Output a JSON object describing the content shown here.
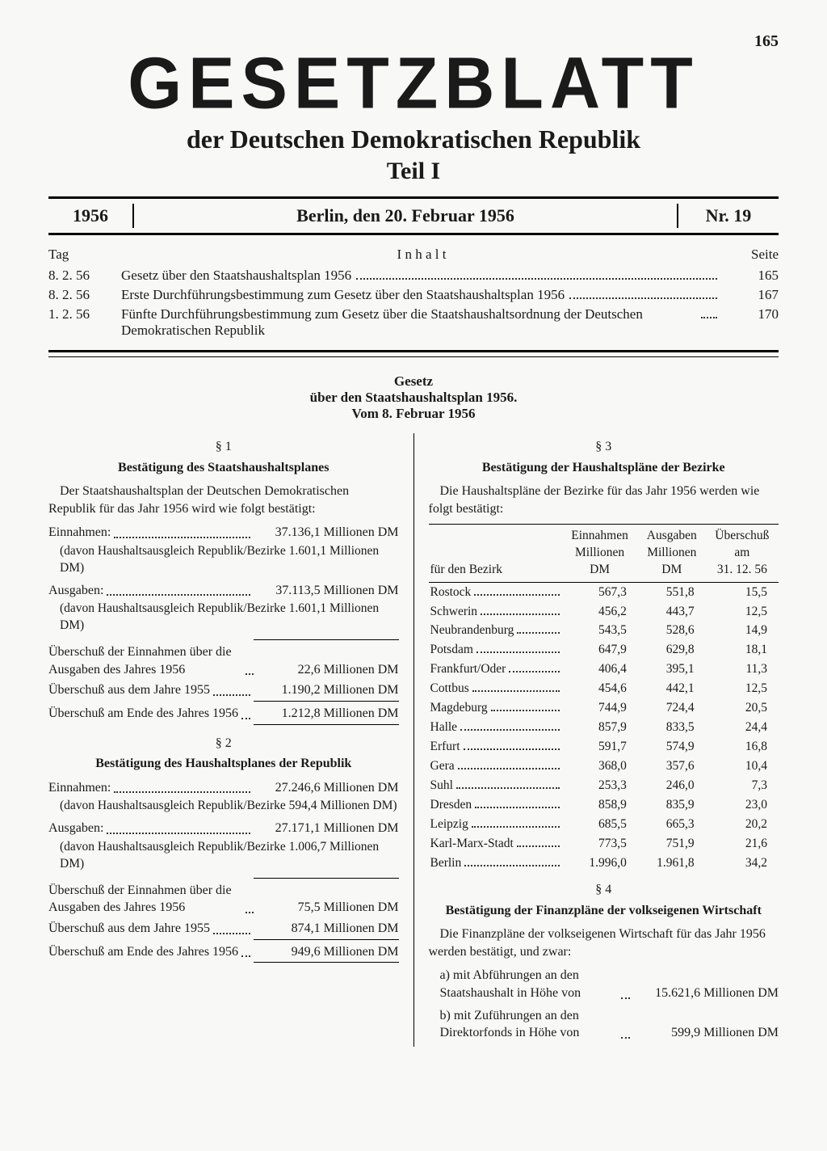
{
  "page_number": "165",
  "masthead": {
    "title": "GESETZBLATT",
    "subtitle": "der Deutschen Demokratischen Republik",
    "part": "Teil I"
  },
  "header": {
    "year": "1956",
    "place_date": "Berlin, den 20. Februar 1956",
    "number": "Nr. 19"
  },
  "toc": {
    "col_tag": "Tag",
    "col_inhalt": "I n h a l t",
    "col_seite": "Seite",
    "rows": [
      {
        "date": "8. 2. 56",
        "title": "Gesetz über den Staatshaushaltsplan 1956",
        "page": "165"
      },
      {
        "date": "8. 2. 56",
        "title": "Erste Durchführungsbestimmung zum Gesetz über den Staatshaushaltsplan 1956",
        "page": "167"
      },
      {
        "date": "1. 2. 56",
        "title": "Fünfte Durchführungsbestimmung zum Gesetz über die Staatshaushaltsordnung der Deutschen Demokratischen Republik",
        "page": "170"
      }
    ]
  },
  "law": {
    "line1": "Gesetz",
    "line2": "über den Staatshaushaltsplan 1956.",
    "line3": "Vom 8. Februar 1956"
  },
  "sec1": {
    "num": "§ 1",
    "title": "Bestätigung des Staatshaushaltsplanes",
    "intro": "Der Staatshaushaltsplan der Deutschen Demokratischen Republik für das Jahr 1956 wird wie folgt bestätigt:",
    "r1_label": "Einnahmen:",
    "r1_val": "37.136,1 Millionen DM",
    "r1_sub": "(davon Haushaltsausgleich Republik/Bezirke 1.601,1 Millionen DM)",
    "r2_label": "Ausgaben:",
    "r2_val": "37.113,5 Millionen DM",
    "r2_sub": "(davon Haushaltsausgleich Republik/Bezirke 1.601,1 Millionen DM)",
    "r3_label": "Überschuß der Einnahmen über die Ausgaben des Jahres 1956",
    "r3_val": "22,6 Millionen DM",
    "r4_label": "Überschuß aus dem Jahre 1955",
    "r4_val": "1.190,2 Millionen DM",
    "r5_label": "Überschuß am Ende des Jahres 1956",
    "r5_val": "1.212,8 Millionen DM"
  },
  "sec2": {
    "num": "§ 2",
    "title": "Bestätigung des Haushaltsplanes der Republik",
    "r1_label": "Einnahmen:",
    "r1_val": "27.246,6 Millionen DM",
    "r1_sub": "(davon Haushaltsausgleich Republik/Bezirke 594,4 Millionen DM)",
    "r2_label": "Ausgaben:",
    "r2_val": "27.171,1 Millionen DM",
    "r2_sub": "(davon Haushaltsausgleich Republik/Bezirke 1.006,7 Millionen DM)",
    "r3_label": "Überschuß der Einnahmen über die Ausgaben des Jahres 1956",
    "r3_val": "75,5 Millionen DM",
    "r4_label": "Überschuß aus dem Jahre 1955",
    "r4_val": "874,1 Millionen DM",
    "r5_label": "Überschuß am Ende des Jahres 1956",
    "r5_val": "949,6 Millionen DM"
  },
  "sec3": {
    "num": "§ 3",
    "title": "Bestätigung der Haushaltspläne der Bezirke",
    "intro": "Die Haushaltspläne der Bezirke für das Jahr 1956 werden wie folgt bestätigt:",
    "col0": "für den Bezirk",
    "col1a": "Einnahmen",
    "col1b": "Millionen",
    "col1c": "DM",
    "col2a": "Ausgaben",
    "col2b": "Millionen",
    "col2c": "DM",
    "col3a": "Überschuß",
    "col3b": "am",
    "col3c": "31. 12. 56",
    "rows": [
      {
        "name": "Rostock",
        "einn": "567,3",
        "ausg": "551,8",
        "uber": "15,5"
      },
      {
        "name": "Schwerin",
        "einn": "456,2",
        "ausg": "443,7",
        "uber": "12,5"
      },
      {
        "name": "Neubrandenburg",
        "einn": "543,5",
        "ausg": "528,6",
        "uber": "14,9"
      },
      {
        "name": "Potsdam",
        "einn": "647,9",
        "ausg": "629,8",
        "uber": "18,1"
      },
      {
        "name": "Frankfurt/Oder",
        "einn": "406,4",
        "ausg": "395,1",
        "uber": "11,3"
      },
      {
        "name": "Cottbus",
        "einn": "454,6",
        "ausg": "442,1",
        "uber": "12,5"
      },
      {
        "name": "Magdeburg",
        "einn": "744,9",
        "ausg": "724,4",
        "uber": "20,5"
      },
      {
        "name": "Halle",
        "einn": "857,9",
        "ausg": "833,5",
        "uber": "24,4"
      },
      {
        "name": "Erfurt",
        "einn": "591,7",
        "ausg": "574,9",
        "uber": "16,8"
      },
      {
        "name": "Gera",
        "einn": "368,0",
        "ausg": "357,6",
        "uber": "10,4"
      },
      {
        "name": "Suhl",
        "einn": "253,3",
        "ausg": "246,0",
        "uber": "7,3"
      },
      {
        "name": "Dresden",
        "einn": "858,9",
        "ausg": "835,9",
        "uber": "23,0"
      },
      {
        "name": "Leipzig",
        "einn": "685,5",
        "ausg": "665,3",
        "uber": "20,2"
      },
      {
        "name": "Karl-Marx-Stadt",
        "einn": "773,5",
        "ausg": "751,9",
        "uber": "21,6"
      },
      {
        "name": "Berlin",
        "einn": "1.996,0",
        "ausg": "1.961,8",
        "uber": "34,2"
      }
    ]
  },
  "sec4": {
    "num": "§ 4",
    "title": "Bestätigung der Finanzpläne der volkseigenen Wirtschaft",
    "intro": "Die Finanzpläne der volkseigenen Wirtschaft für das Jahr 1956 werden bestätigt, und zwar:",
    "a_text": "a) mit Abführungen an den Staatshaushalt in Höhe von",
    "a_val": "15.621,6 Millionen DM",
    "b_text": "b) mit Zuführungen an den Direktorfonds in Höhe von",
    "b_val": "599,9 Millionen DM"
  }
}
